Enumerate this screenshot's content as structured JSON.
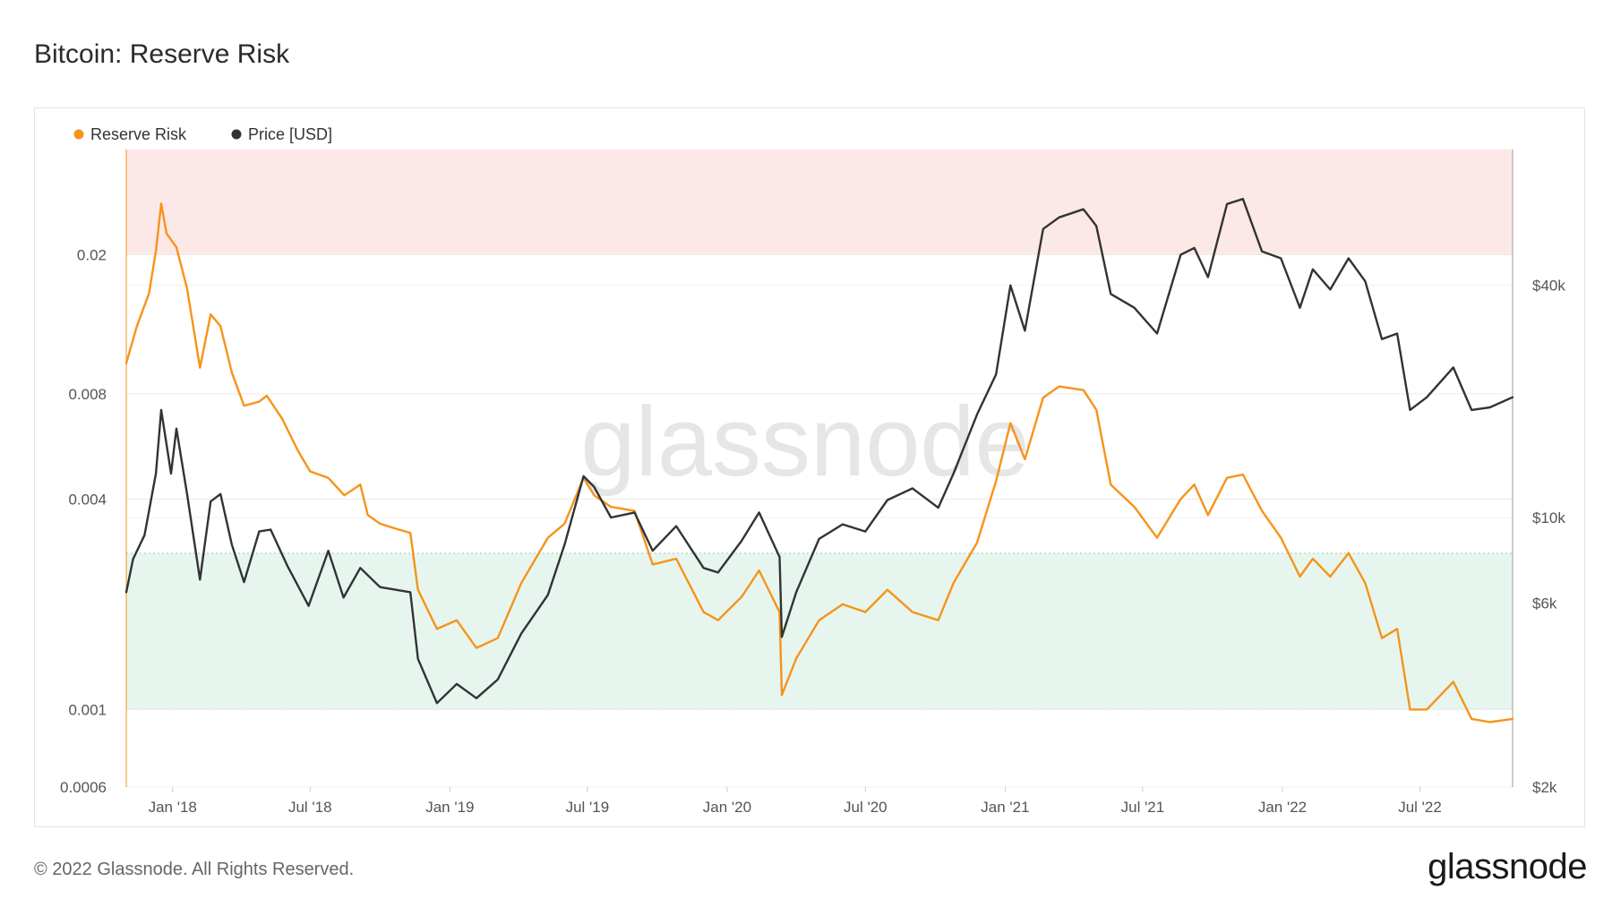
{
  "header": {
    "title": "Bitcoin: Reserve Risk"
  },
  "footer": {
    "copyright": "© 2022 Glassnode. All Rights Reserved.",
    "logo_text": "glassnode"
  },
  "watermark": "glassnode",
  "colors": {
    "reserve_risk": "#f7931a",
    "price": "#333333",
    "red_zone": "#fde8e8",
    "green_zone": "#e6f6ee"
  },
  "chart_data": {
    "type": "line",
    "title": "Bitcoin: Reserve Risk",
    "legend": {
      "placement": "top-left",
      "entries": [
        "Reserve Risk",
        "Price [USD]"
      ]
    },
    "x_ticks": [
      "Jan '18",
      "Jul '18",
      "Jan '19",
      "Jul '19",
      "Jan '20",
      "Jul '20",
      "Jan '21",
      "Jul '21",
      "Jan '22",
      "Jul '22"
    ],
    "x_tick_dates": [
      "2018-01-01",
      "2018-07-01",
      "2019-01-01",
      "2019-07-01",
      "2020-01-01",
      "2020-07-01",
      "2021-01-01",
      "2021-07-01",
      "2022-01-01",
      "2022-07-01"
    ],
    "xlim": [
      "2017-11-01",
      "2022-10-31"
    ],
    "y_left": {
      "scale": "log",
      "lim": [
        0.0006,
        0.04
      ],
      "ticks": [
        {
          "value": 0.02,
          "label": "0.02"
        },
        {
          "value": 0.008,
          "label": "0.008"
        },
        {
          "value": 0.004,
          "label": "0.004"
        },
        {
          "value": 0.001,
          "label": "0.001"
        },
        {
          "value": 0.0006,
          "label": "0.0006"
        }
      ]
    },
    "y_right": {
      "scale": "log",
      "lim": [
        2000,
        90000
      ],
      "ticks": [
        {
          "value": 40000,
          "label": "$40k"
        },
        {
          "value": 10000,
          "label": "$10k"
        },
        {
          "value": 6000,
          "label": "$6k"
        },
        {
          "value": 2000,
          "label": "$2k"
        }
      ]
    },
    "bands": [
      {
        "name": "high",
        "from": 0.02,
        "to": 0.04
      },
      {
        "name": "low",
        "from": 0.001,
        "to": 0.0028
      }
    ],
    "series": [
      {
        "name": "Reserve Risk",
        "axis": "left",
        "points": [
          [
            "2017-11-01",
            0.0098
          ],
          [
            "2017-11-15",
            0.0125
          ],
          [
            "2017-12-01",
            0.0155
          ],
          [
            "2017-12-10",
            0.0205
          ],
          [
            "2017-12-17",
            0.028
          ],
          [
            "2017-12-24",
            0.023
          ],
          [
            "2018-01-06",
            0.021
          ],
          [
            "2018-01-20",
            0.016
          ],
          [
            "2018-02-06",
            0.0095
          ],
          [
            "2018-02-20",
            0.0135
          ],
          [
            "2018-03-05",
            0.0125
          ],
          [
            "2018-03-20",
            0.0092
          ],
          [
            "2018-04-05",
            0.0074
          ],
          [
            "2018-04-25",
            0.0076
          ],
          [
            "2018-05-05",
            0.0079
          ],
          [
            "2018-05-25",
            0.0068
          ],
          [
            "2018-06-15",
            0.0055
          ],
          [
            "2018-07-01",
            0.0048
          ],
          [
            "2018-07-25",
            0.0046
          ],
          [
            "2018-08-15",
            0.0041
          ],
          [
            "2018-09-05",
            0.0044
          ],
          [
            "2018-09-15",
            0.0036
          ],
          [
            "2018-10-01",
            0.0034
          ],
          [
            "2018-10-20",
            0.0033
          ],
          [
            "2018-11-10",
            0.0032
          ],
          [
            "2018-11-20",
            0.0022
          ],
          [
            "2018-12-15",
            0.0017
          ],
          [
            "2019-01-10",
            0.0018
          ],
          [
            "2019-02-05",
            0.0015
          ],
          [
            "2019-03-05",
            0.0016
          ],
          [
            "2019-04-05",
            0.0023
          ],
          [
            "2019-05-10",
            0.0031
          ],
          [
            "2019-06-01",
            0.0034
          ],
          [
            "2019-06-26",
            0.0046
          ],
          [
            "2019-07-10",
            0.0041
          ],
          [
            "2019-08-01",
            0.0038
          ],
          [
            "2019-09-01",
            0.0037
          ],
          [
            "2019-09-25",
            0.0026
          ],
          [
            "2019-10-26",
            0.0027
          ],
          [
            "2019-12-01",
            0.0019
          ],
          [
            "2019-12-20",
            0.0018
          ],
          [
            "2020-01-20",
            0.0021
          ],
          [
            "2020-02-12",
            0.0025
          ],
          [
            "2020-03-10",
            0.0019
          ],
          [
            "2020-03-13",
            0.0011
          ],
          [
            "2020-04-01",
            0.0014
          ],
          [
            "2020-05-01",
            0.0018
          ],
          [
            "2020-06-01",
            0.002
          ],
          [
            "2020-07-01",
            0.0019
          ],
          [
            "2020-07-30",
            0.0022
          ],
          [
            "2020-09-01",
            0.0019
          ],
          [
            "2020-10-05",
            0.0018
          ],
          [
            "2020-10-25",
            0.0023
          ],
          [
            "2020-11-25",
            0.003
          ],
          [
            "2020-12-20",
            0.0045
          ],
          [
            "2021-01-08",
            0.0066
          ],
          [
            "2021-01-27",
            0.0052
          ],
          [
            "2021-02-20",
            0.0078
          ],
          [
            "2021-03-13",
            0.0084
          ],
          [
            "2021-04-14",
            0.0082
          ],
          [
            "2021-05-01",
            0.0072
          ],
          [
            "2021-05-20",
            0.0044
          ],
          [
            "2021-06-20",
            0.0038
          ],
          [
            "2021-07-20",
            0.0031
          ],
          [
            "2021-08-20",
            0.004
          ],
          [
            "2021-09-07",
            0.0044
          ],
          [
            "2021-09-25",
            0.0036
          ],
          [
            "2021-10-20",
            0.0046
          ],
          [
            "2021-11-10",
            0.0047
          ],
          [
            "2021-12-05",
            0.0037
          ],
          [
            "2021-12-30",
            0.0031
          ],
          [
            "2022-01-24",
            0.0024
          ],
          [
            "2022-02-10",
            0.0027
          ],
          [
            "2022-03-05",
            0.0024
          ],
          [
            "2022-03-29",
            0.0028
          ],
          [
            "2022-04-20",
            0.0023
          ],
          [
            "2022-05-12",
            0.0016
          ],
          [
            "2022-06-01",
            0.0017
          ],
          [
            "2022-06-18",
            0.001
          ],
          [
            "2022-07-10",
            0.001
          ],
          [
            "2022-08-14",
            0.0012
          ],
          [
            "2022-09-07",
            0.00094
          ],
          [
            "2022-10-01",
            0.00092
          ],
          [
            "2022-10-31",
            0.00094
          ]
        ]
      },
      {
        "name": "Price [USD]",
        "axis": "right",
        "points": [
          [
            "2017-11-01",
            6400
          ],
          [
            "2017-11-10",
            7800
          ],
          [
            "2017-11-25",
            9000
          ],
          [
            "2017-12-10",
            13000
          ],
          [
            "2017-12-17",
            19000
          ],
          [
            "2017-12-30",
            13000
          ],
          [
            "2018-01-06",
            17000
          ],
          [
            "2018-01-20",
            11500
          ],
          [
            "2018-02-06",
            6900
          ],
          [
            "2018-02-20",
            11000
          ],
          [
            "2018-03-05",
            11500
          ],
          [
            "2018-03-20",
            8500
          ],
          [
            "2018-04-05",
            6800
          ],
          [
            "2018-04-25",
            9200
          ],
          [
            "2018-05-10",
            9300
          ],
          [
            "2018-06-01",
            7500
          ],
          [
            "2018-06-29",
            5900
          ],
          [
            "2018-07-25",
            8200
          ],
          [
            "2018-08-14",
            6200
          ],
          [
            "2018-09-05",
            7400
          ],
          [
            "2018-10-01",
            6600
          ],
          [
            "2018-11-10",
            6400
          ],
          [
            "2018-11-20",
            4300
          ],
          [
            "2018-12-15",
            3300
          ],
          [
            "2019-01-10",
            3700
          ],
          [
            "2019-02-05",
            3400
          ],
          [
            "2019-03-05",
            3800
          ],
          [
            "2019-04-05",
            5000
          ],
          [
            "2019-05-10",
            6300
          ],
          [
            "2019-06-01",
            8500
          ],
          [
            "2019-06-26",
            12800
          ],
          [
            "2019-07-10",
            12000
          ],
          [
            "2019-08-01",
            10000
          ],
          [
            "2019-09-01",
            10300
          ],
          [
            "2019-09-25",
            8200
          ],
          [
            "2019-10-26",
            9500
          ],
          [
            "2019-12-01",
            7400
          ],
          [
            "2019-12-20",
            7200
          ],
          [
            "2020-01-20",
            8700
          ],
          [
            "2020-02-12",
            10300
          ],
          [
            "2020-03-10",
            7900
          ],
          [
            "2020-03-13",
            4900
          ],
          [
            "2020-04-01",
            6400
          ],
          [
            "2020-05-01",
            8800
          ],
          [
            "2020-06-01",
            9600
          ],
          [
            "2020-07-01",
            9200
          ],
          [
            "2020-07-30",
            11100
          ],
          [
            "2020-09-01",
            11900
          ],
          [
            "2020-10-05",
            10600
          ],
          [
            "2020-10-25",
            13000
          ],
          [
            "2020-11-25",
            18500
          ],
          [
            "2020-12-20",
            23500
          ],
          [
            "2021-01-08",
            40000
          ],
          [
            "2021-01-27",
            30500
          ],
          [
            "2021-02-20",
            56000
          ],
          [
            "2021-03-13",
            60000
          ],
          [
            "2021-04-14",
            63000
          ],
          [
            "2021-05-01",
            57000
          ],
          [
            "2021-05-20",
            38000
          ],
          [
            "2021-06-20",
            35000
          ],
          [
            "2021-07-20",
            30000
          ],
          [
            "2021-08-20",
            48000
          ],
          [
            "2021-09-07",
            50000
          ],
          [
            "2021-09-25",
            42000
          ],
          [
            "2021-10-20",
            65000
          ],
          [
            "2021-11-10",
            67000
          ],
          [
            "2021-12-05",
            49000
          ],
          [
            "2021-12-30",
            47000
          ],
          [
            "2022-01-24",
            35000
          ],
          [
            "2022-02-10",
            44000
          ],
          [
            "2022-03-05",
            39000
          ],
          [
            "2022-03-29",
            47000
          ],
          [
            "2022-04-20",
            41000
          ],
          [
            "2022-05-12",
            29000
          ],
          [
            "2022-06-01",
            30000
          ],
          [
            "2022-06-18",
            19000
          ],
          [
            "2022-07-10",
            20500
          ],
          [
            "2022-08-14",
            24500
          ],
          [
            "2022-09-07",
            19000
          ],
          [
            "2022-10-01",
            19300
          ],
          [
            "2022-10-31",
            20500
          ]
        ]
      }
    ],
    "grid": true
  }
}
